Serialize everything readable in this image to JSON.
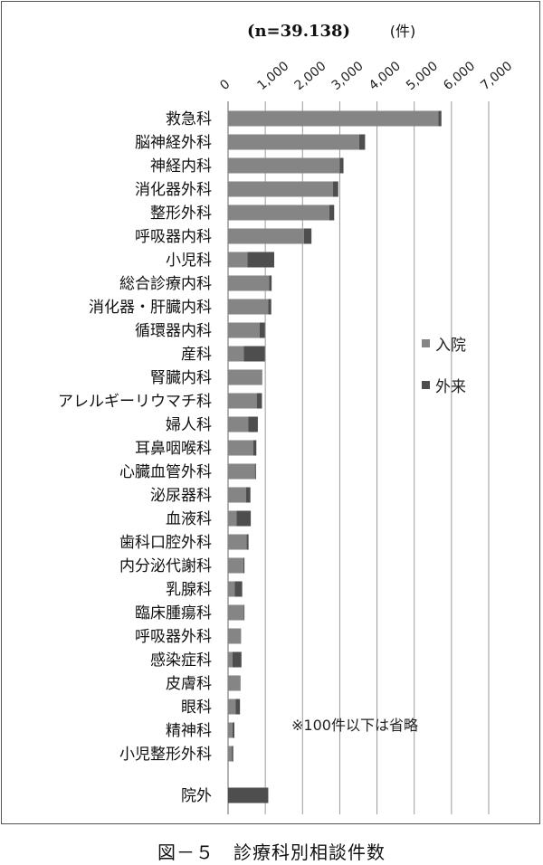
{
  "caption": "図－５　診療科別相談件数",
  "note": "※100件以下は省略",
  "chart_data": {
    "type": "bar",
    "orientation": "horizontal",
    "stacked": true,
    "title": "(n=39.138)",
    "unit": "(件)",
    "xlim": [
      0,
      7000
    ],
    "ticks": [
      "0",
      "1,000",
      "2,000",
      "3,000",
      "4,000",
      "5,000",
      "6,000",
      "7,000"
    ],
    "tick_values": [
      0,
      1000,
      2000,
      3000,
      4000,
      5000,
      6000,
      7000
    ],
    "grid": true,
    "legend": "right",
    "categories": [
      "救急科",
      "脳神経外科",
      "神経内科",
      "消化器外科",
      "整形外科",
      "呼吸器内科",
      "小児科",
      "総合診療内科",
      "消化器・肝臓内科",
      "循環器内科",
      "産科",
      "腎臓内科",
      "アレルギーリウマチ科",
      "婦人科",
      "耳鼻咽喉科",
      "心臓血管外科",
      "泌尿器科",
      "血液科",
      "歯科口腔外科",
      "内分泌代謝科",
      "乳腺科",
      "臨床腫瘍科",
      "呼吸器外科",
      "感染症科",
      "皮膚科",
      "眼科",
      "精神科",
      "小児整形外科",
      "院外"
    ],
    "series": [
      {
        "name": "入院",
        "color": "#858585",
        "values": [
          5650,
          3520,
          3000,
          2820,
          2720,
          2040,
          520,
          1100,
          1080,
          850,
          420,
          920,
          770,
          540,
          680,
          720,
          480,
          230,
          500,
          410,
          180,
          420,
          350,
          120,
          310,
          200,
          120,
          100,
          0
        ]
      },
      {
        "name": "外来",
        "color": "#4e4e4e",
        "values": [
          80,
          160,
          100,
          140,
          130,
          200,
          720,
          70,
          80,
          140,
          570,
          0,
          140,
          260,
          80,
          30,
          120,
          380,
          50,
          30,
          200,
          20,
          0,
          240,
          20,
          120,
          50,
          40,
          1080
        ]
      }
    ]
  }
}
